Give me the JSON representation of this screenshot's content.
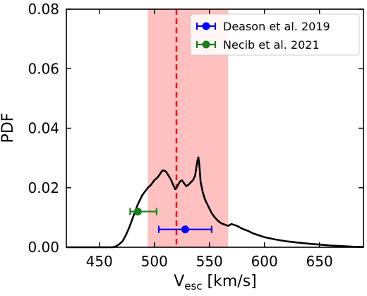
{
  "chart_data": {
    "type": "line",
    "xlabel": "V",
    "xlabel_sub": "esc",
    "xlabel_unit": " [km/s]",
    "ylabel": "PDF",
    "xlim": [
      420,
      690
    ],
    "ylim": [
      0,
      0.08
    ],
    "x_ticks": [
      450,
      500,
      550,
      600,
      650
    ],
    "x_tick_labels": [
      "450",
      "500",
      "550",
      "600",
      "650"
    ],
    "y_ticks": [
      0,
      0.02,
      0.04,
      0.06,
      0.08
    ],
    "y_tick_labels": [
      "0.00",
      "0.02",
      "0.04",
      "0.06",
      "0.08"
    ],
    "grid": false,
    "legend_position": "top-right",
    "shaded_band": {
      "x_range": [
        494,
        567
      ],
      "color": "#ffc0c0"
    },
    "median_line": {
      "x": 520,
      "color": "#e41a1c",
      "style": "dashed"
    },
    "series": [
      {
        "color": "#000000",
        "x": [
          420,
          462,
          465,
          468,
          471,
          474,
          477,
          480,
          483,
          485,
          487,
          489,
          491,
          494,
          497,
          500,
          503,
          505,
          507,
          509,
          511,
          513,
          515,
          517,
          519,
          521,
          523,
          525,
          527,
          529,
          531,
          533,
          535,
          537,
          538,
          539,
          540,
          541,
          542,
          544,
          546,
          548,
          550,
          552,
          555,
          558,
          561,
          564,
          567,
          570,
          575,
          580,
          585,
          590,
          595,
          600,
          610,
          620,
          630,
          640,
          650,
          660,
          670,
          680,
          690
        ],
        "values": [
          0,
          0,
          0.0003,
          0.001,
          0.002,
          0.004,
          0.0065,
          0.0095,
          0.0125,
          0.0145,
          0.016,
          0.0175,
          0.0185,
          0.02,
          0.021,
          0.0225,
          0.0235,
          0.0245,
          0.0257,
          0.0258,
          0.0252,
          0.024,
          0.0228,
          0.021,
          0.0195,
          0.0205,
          0.022,
          0.0225,
          0.0215,
          0.0205,
          0.021,
          0.0218,
          0.0225,
          0.024,
          0.0265,
          0.029,
          0.0302,
          0.027,
          0.022,
          0.0185,
          0.016,
          0.0145,
          0.013,
          0.0115,
          0.01,
          0.0088,
          0.008,
          0.0076,
          0.0072,
          0.0078,
          0.0072,
          0.0062,
          0.0055,
          0.0046,
          0.004,
          0.0034,
          0.0026,
          0.002,
          0.0016,
          0.0012,
          0.0009,
          0.0006,
          0.0004,
          0.0002,
          0.0001
        ]
      },
      {
        "name": "Deason et al. 2019",
        "type": "errorbar",
        "color": "#0000ff",
        "x": 528,
        "y": 0.006,
        "x_err_low": 24,
        "x_err_high": 24
      },
      {
        "name": "Necib et al. 2021",
        "type": "errorbar",
        "color": "#1a7f1a",
        "x": 485,
        "y": 0.012,
        "x_err_low": 7,
        "x_err_high": 17
      }
    ]
  }
}
